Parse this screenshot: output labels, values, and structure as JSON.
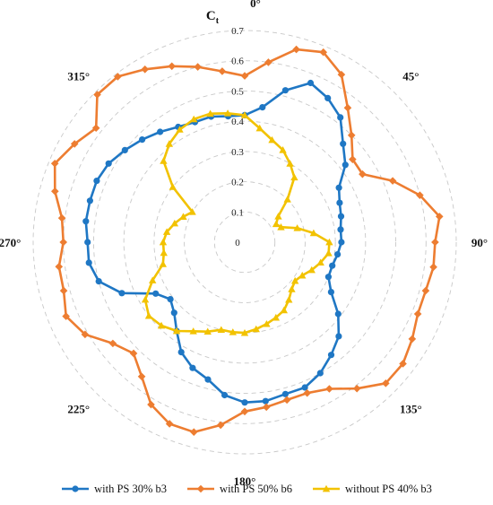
{
  "chart_data": {
    "type": "radar",
    "title": "",
    "radial_axis_label": "C",
    "radial_axis_label_sub": "t",
    "radial_range": [
      0,
      0.7
    ],
    "radial_ticks": [
      "0",
      "0.1",
      "0.2",
      "0.3",
      "0.4",
      "0.5",
      "0.6",
      "0.7"
    ],
    "angle_ticks": [
      "0°",
      "45°",
      "90°",
      "135°",
      "180°",
      "225°",
      "270°",
      "315°"
    ],
    "angle_tick_values": [
      0,
      45,
      90,
      135,
      180,
      225,
      270,
      315
    ],
    "grid": "dashed circles",
    "legend_position": "bottom",
    "series": [
      {
        "name": "with PS 30% b3",
        "color": "#1f77c4",
        "marker": "circle",
        "angles": [
          0,
          7.5,
          15,
          22.5,
          30,
          37.5,
          45,
          52.5,
          60,
          67.5,
          75,
          82.5,
          90,
          97.5,
          105,
          112.5,
          120,
          127.5,
          135,
          142.5,
          150,
          157.5,
          165,
          172.5,
          180,
          187.5,
          195,
          202.5,
          210,
          217.5,
          225,
          232.5,
          240,
          247.5,
          255,
          262.5,
          270,
          277.5,
          285,
          292.5,
          300,
          307.5,
          315,
          322.5,
          330,
          337.5,
          345,
          352.5
        ],
        "values": [
          0.42,
          0.45,
          0.52,
          0.57,
          0.55,
          0.52,
          0.46,
          0.42,
          0.36,
          0.34,
          0.33,
          0.32,
          0.32,
          0.31,
          0.3,
          0.3,
          0.33,
          0.39,
          0.44,
          0.47,
          0.5,
          0.52,
          0.52,
          0.53,
          0.53,
          0.51,
          0.47,
          0.45,
          0.42,
          0.37,
          0.33,
          0.31,
          0.34,
          0.44,
          0.5,
          0.52,
          0.52,
          0.53,
          0.53,
          0.53,
          0.52,
          0.5,
          0.48,
          0.46,
          0.44,
          0.43,
          0.43,
          0.42
        ]
      },
      {
        "name": "with PS 50% b6",
        "color": "#ed7d31",
        "marker": "diamond",
        "angles": [
          0,
          7.5,
          15,
          22.5,
          30,
          37.5,
          45,
          52.5,
          60,
          67.5,
          75,
          82.5,
          90,
          97.5,
          105,
          112.5,
          120,
          127.5,
          135,
          142.5,
          150,
          157.5,
          165,
          172.5,
          180,
          187.5,
          195,
          202.5,
          210,
          217.5,
          225,
          232.5,
          240,
          247.5,
          255,
          262.5,
          270,
          277.5,
          285,
          292.5,
          300,
          307.5,
          315,
          322.5,
          330,
          337.5,
          345,
          352.5
        ],
        "values": [
          0.55,
          0.6,
          0.66,
          0.68,
          0.64,
          0.56,
          0.5,
          0.45,
          0.45,
          0.53,
          0.6,
          0.65,
          0.63,
          0.63,
          0.62,
          0.62,
          0.64,
          0.66,
          0.66,
          0.61,
          0.56,
          0.54,
          0.54,
          0.55,
          0.56,
          0.61,
          0.65,
          0.65,
          0.62,
          0.56,
          0.52,
          0.55,
          0.61,
          0.64,
          0.62,
          0.62,
          0.6,
          0.61,
          0.65,
          0.68,
          0.65,
          0.62,
          0.69,
          0.69,
          0.66,
          0.63,
          0.6,
          0.57
        ]
      },
      {
        "name": "without PS 40% b3",
        "color": "#f2c200",
        "marker": "triangle",
        "angles": [
          0,
          7.5,
          15,
          22.5,
          30,
          37.5,
          45,
          52.5,
          60,
          67.5,
          75,
          82.5,
          90,
          97.5,
          105,
          112.5,
          120,
          127.5,
          135,
          142.5,
          150,
          157.5,
          165,
          172.5,
          180,
          187.5,
          195,
          202.5,
          210,
          217.5,
          225,
          232.5,
          240,
          247.5,
          255,
          262.5,
          270,
          277.5,
          285,
          292.5,
          300,
          307.5,
          315,
          322.5,
          330,
          337.5,
          345,
          352.5
        ],
        "values": [
          0.42,
          0.38,
          0.35,
          0.33,
          0.3,
          0.27,
          0.2,
          0.14,
          0.12,
          0.13,
          0.18,
          0.23,
          0.28,
          0.28,
          0.26,
          0.24,
          0.22,
          0.21,
          0.22,
          0.24,
          0.26,
          0.27,
          0.28,
          0.29,
          0.3,
          0.3,
          0.3,
          0.32,
          0.34,
          0.37,
          0.39,
          0.4,
          0.38,
          0.33,
          0.28,
          0.27,
          0.27,
          0.26,
          0.24,
          0.22,
          0.2,
          0.3,
          0.38,
          0.41,
          0.43,
          0.44,
          0.44,
          0.43
        ]
      }
    ]
  }
}
